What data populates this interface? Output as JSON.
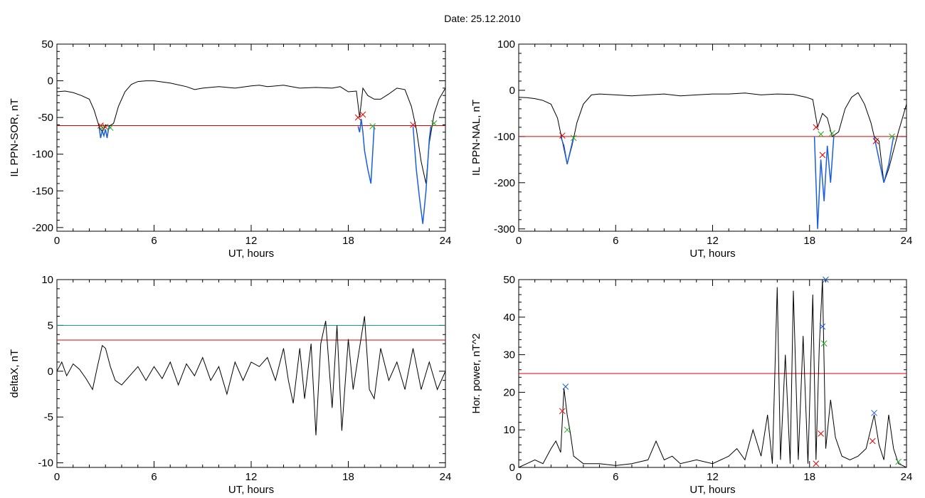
{
  "header": {
    "title": "Date:  25.12.2010"
  },
  "chart_data": [
    {
      "type": "line",
      "xlabel": "UT, hours",
      "ylabel": "IL PPN-SOR, nT",
      "xlim": [
        0,
        24
      ],
      "ylim": [
        -205,
        50
      ],
      "xticks": [
        "0",
        "6",
        "12",
        "18",
        "24"
      ],
      "yticks": [
        "50",
        "0",
        "-50",
        "-100",
        "-150",
        "-200"
      ],
      "threshold": {
        "y": -61,
        "color": "#e00000"
      },
      "series": [
        {
          "color": "#000000",
          "x": [
            0,
            0.5,
            1,
            1.5,
            2.0,
            2.3,
            2.6,
            2.8,
            3.0,
            3.2,
            3.5,
            3.8,
            4.2,
            4.6,
            5.0,
            5.5,
            6,
            7,
            8,
            8.5,
            9,
            10,
            11,
            12,
            12.5,
            13,
            14,
            15,
            16,
            17,
            17.5,
            18,
            18.5,
            18.7,
            18.9,
            19.2,
            19.6,
            20,
            20.5,
            21,
            21.5,
            21.9,
            22.2,
            22.5,
            22.8,
            23.0,
            23.3,
            23.6,
            24
          ],
          "y": [
            -15,
            -14,
            -16,
            -20,
            -25,
            -40,
            -62,
            -70,
            -60,
            -62,
            -58,
            -35,
            -15,
            -5,
            -1,
            0,
            0,
            -3,
            -8,
            -12,
            -10,
            -8,
            -10,
            -7,
            -6,
            -8,
            -6,
            -10,
            -9,
            -10,
            -8,
            -15,
            -14,
            -50,
            -10,
            -20,
            -25,
            -25,
            -18,
            -10,
            -12,
            -35,
            -65,
            -110,
            -140,
            -85,
            -45,
            -25,
            -10
          ]
        },
        {
          "color": "#1a5fd9",
          "x": [
            2.6,
            2.7,
            2.8,
            2.9,
            3.0,
            3.1,
            3.2,
            3.3,
            18.6,
            18.7,
            18.8,
            18.9,
            19.0,
            19.2,
            19.4,
            19.6,
            22.0,
            22.2,
            22.4,
            22.6,
            22.8,
            23.0,
            23.1
          ],
          "y": [
            -62,
            -78,
            -68,
            -75,
            -66,
            -78,
            -64,
            -62,
            -62,
            -70,
            -52,
            -70,
            -95,
            -120,
            -140,
            -62,
            -62,
            -120,
            -160,
            -195,
            -150,
            -80,
            -62
          ]
        }
      ],
      "markers": [
        {
          "x": 2.7,
          "y": -61,
          "color": "#e00000"
        },
        {
          "x": 3.0,
          "y": -63,
          "color": "#e00000"
        },
        {
          "x": 2.8,
          "y": -64,
          "color": "#22aa22"
        },
        {
          "x": 3.3,
          "y": -64,
          "color": "#22aa22"
        },
        {
          "x": 18.6,
          "y": -50,
          "color": "#e00000"
        },
        {
          "x": 18.9,
          "y": -46,
          "color": "#e00000"
        },
        {
          "x": 19.5,
          "y": -62,
          "color": "#22aa22"
        },
        {
          "x": 22.0,
          "y": -60,
          "color": "#e00000"
        },
        {
          "x": 23.3,
          "y": -58,
          "color": "#22aa22"
        }
      ]
    },
    {
      "type": "line",
      "xlabel": "UT, hours",
      "ylabel": "IL PPN-NAL, nT",
      "xlim": [
        0,
        24
      ],
      "ylim": [
        -305,
        100
      ],
      "xticks": [
        "0",
        "6",
        "12",
        "18",
        "24"
      ],
      "yticks": [
        "100",
        "0",
        "-100",
        "-200",
        "-300"
      ],
      "threshold": {
        "y": -100,
        "color": "#e00000"
      },
      "series": [
        {
          "color": "#000000",
          "x": [
            0,
            0.5,
            1,
            1.5,
            2.0,
            2.4,
            2.7,
            3.0,
            3.3,
            3.6,
            4.0,
            4.5,
            5,
            6,
            7,
            8,
            9,
            10,
            11,
            12,
            13,
            14,
            15,
            16,
            17,
            17.8,
            18.2,
            18.5,
            18.8,
            19.1,
            19.4,
            19.8,
            20.2,
            20.6,
            21,
            21.4,
            21.8,
            22.0,
            22.3,
            22.6,
            22.9,
            23.2,
            23.5,
            24
          ],
          "y": [
            -15,
            -16,
            -18,
            -22,
            -30,
            -60,
            -110,
            -160,
            -120,
            -70,
            -30,
            -10,
            -8,
            -10,
            -12,
            -10,
            -8,
            -12,
            -10,
            -8,
            -8,
            -6,
            -10,
            -8,
            -9,
            -15,
            -20,
            -80,
            -50,
            -60,
            -100,
            -90,
            -40,
            -15,
            -5,
            -30,
            -70,
            -100,
            -110,
            -200,
            -170,
            -130,
            -90,
            -30
          ]
        },
        {
          "color": "#1a5fd9",
          "x": [
            2.6,
            2.8,
            3.0,
            3.2,
            3.4,
            18.3,
            18.5,
            18.7,
            18.9,
            19.1,
            19.3,
            19.5,
            22.0,
            22.3,
            22.6,
            22.9,
            23.2
          ],
          "y": [
            -100,
            -120,
            -160,
            -130,
            -100,
            -100,
            -300,
            -150,
            -240,
            -120,
            -200,
            -100,
            -100,
            -150,
            -200,
            -160,
            -100
          ]
        }
      ],
      "markers": [
        {
          "x": 2.7,
          "y": -98,
          "color": "#e00000"
        },
        {
          "x": 3.4,
          "y": -103,
          "color": "#22aa22"
        },
        {
          "x": 18.4,
          "y": -80,
          "color": "#e00000"
        },
        {
          "x": 18.7,
          "y": -95,
          "color": "#22aa22"
        },
        {
          "x": 18.8,
          "y": -140,
          "color": "#e00000"
        },
        {
          "x": 19.4,
          "y": -93,
          "color": "#22aa22"
        },
        {
          "x": 22.1,
          "y": -110,
          "color": "#e00000"
        },
        {
          "x": 23.1,
          "y": -100,
          "color": "#22aa22"
        }
      ]
    },
    {
      "type": "line",
      "xlabel": "UT, hours",
      "ylabel": "deltaX, nT",
      "xlim": [
        0,
        24
      ],
      "ylim": [
        -10.5,
        10
      ],
      "xticks": [
        "0",
        "6",
        "12",
        "18",
        "24"
      ],
      "yticks": [
        "10",
        "5",
        "0",
        "-5",
        "-10"
      ],
      "threshold_lines": [
        {
          "y": 5.0,
          "color": "#1a8a8a"
        },
        {
          "y": 3.4,
          "color": "#e00000"
        }
      ],
      "series": [
        {
          "color": "#000000",
          "x": [
            0,
            0.3,
            0.6,
            1.0,
            1.4,
            1.8,
            2.2,
            2.5,
            2.8,
            3.0,
            3.3,
            3.6,
            4.0,
            4.5,
            5,
            5.5,
            6,
            6.5,
            7,
            7.5,
            8,
            8.5,
            9,
            9.5,
            10,
            10.5,
            11,
            11.5,
            12,
            12.5,
            13,
            13.5,
            14,
            14.3,
            14.6,
            15.0,
            15.3,
            15.7,
            16.0,
            16.3,
            16.6,
            17.0,
            17.3,
            17.6,
            18.0,
            18.3,
            18.6,
            19.0,
            19.3,
            19.6,
            20.0,
            20.5,
            21,
            21.5,
            22,
            22.5,
            23,
            23.5,
            24
          ],
          "y": [
            0,
            1.0,
            -0.5,
            0.8,
            0.2,
            -0.8,
            -2.0,
            0.5,
            2.8,
            2.5,
            0.5,
            -1.0,
            -1.5,
            -0.5,
            0.5,
            -1.0,
            0.5,
            -0.8,
            1.0,
            -1.5,
            0.8,
            -0.5,
            1.5,
            -1.0,
            0.5,
            -2.5,
            1.0,
            -1.0,
            1.0,
            0.5,
            1.5,
            -1.0,
            2.5,
            -1.0,
            -3.5,
            2.5,
            -3.0,
            3.0,
            -7.0,
            3.0,
            5.5,
            -4.0,
            5.0,
            -6.5,
            3.5,
            -2.0,
            1.5,
            6.0,
            -2.0,
            -3.0,
            2.5,
            -1.0,
            1.0,
            -2.0,
            2.5,
            -2.0,
            1.0,
            -2.0,
            0.0
          ]
        }
      ]
    },
    {
      "type": "line",
      "xlabel": "UT, hours",
      "ylabel": "Hor. power, nT^2",
      "xlim": [
        0,
        24
      ],
      "ylim": [
        0,
        50
      ],
      "xticks": [
        "0",
        "6",
        "12",
        "18",
        "24"
      ],
      "yticks": [
        "50",
        "40",
        "30",
        "20",
        "10",
        "0"
      ],
      "threshold": {
        "y": 25,
        "color": "#e00000"
      },
      "series": [
        {
          "color": "#000000",
          "x": [
            0,
            0.5,
            1.0,
            1.5,
            2.0,
            2.3,
            2.6,
            2.8,
            3.0,
            3.2,
            3.4,
            3.7,
            4.0,
            5,
            6,
            7,
            8,
            8.5,
            9,
            9.5,
            10,
            11,
            12,
            13,
            13.5,
            14,
            14.5,
            15.0,
            15.4,
            15.7,
            16.0,
            16.2,
            16.5,
            16.8,
            17.0,
            17.3,
            17.6,
            17.9,
            18.2,
            18.4,
            18.6,
            18.8,
            19.0,
            19.3,
            19.6,
            20.0,
            20.5,
            21.0,
            21.5,
            22.0,
            22.3,
            22.6,
            22.9,
            23.2,
            23.5,
            24
          ],
          "y": [
            0,
            1,
            2,
            1,
            5,
            7,
            4,
            21,
            14,
            9,
            3,
            2,
            1,
            1,
            0.5,
            1,
            2,
            7,
            2,
            3,
            1,
            2,
            1,
            3,
            5,
            2,
            10,
            3,
            14,
            1,
            48,
            2,
            30,
            1,
            47,
            2,
            35,
            1,
            46,
            2,
            32,
            50,
            5,
            18,
            8,
            3,
            2,
            3,
            5,
            14,
            6,
            2,
            14,
            5,
            1,
            0
          ]
        }
      ],
      "markers": [
        {
          "x": 2.7,
          "y": 15,
          "color": "#e00000"
        },
        {
          "x": 2.9,
          "y": 21.5,
          "color": "#1a5fd9"
        },
        {
          "x": 3.0,
          "y": 10,
          "color": "#22aa22"
        },
        {
          "x": 18.4,
          "y": 1,
          "color": "#e00000"
        },
        {
          "x": 18.7,
          "y": 9,
          "color": "#e00000"
        },
        {
          "x": 18.8,
          "y": 37.5,
          "color": "#1a5fd9"
        },
        {
          "x": 18.9,
          "y": 33,
          "color": "#22aa22"
        },
        {
          "x": 19.0,
          "y": 50,
          "color": "#1a5fd9"
        },
        {
          "x": 22.0,
          "y": 14.5,
          "color": "#1a5fd9"
        },
        {
          "x": 21.9,
          "y": 7,
          "color": "#e00000"
        },
        {
          "x": 23.5,
          "y": 1.5,
          "color": "#22aa22"
        }
      ]
    }
  ]
}
